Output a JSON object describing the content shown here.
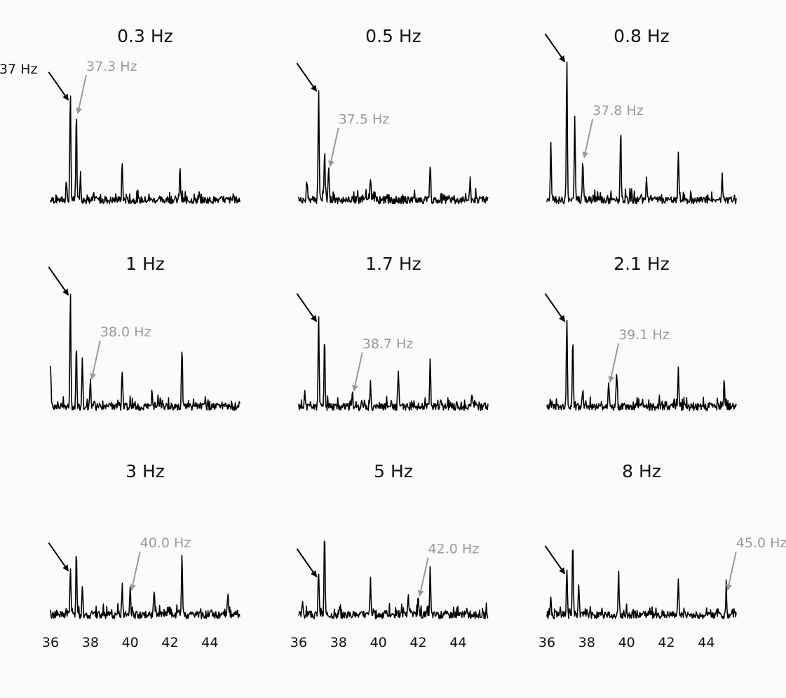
{
  "chart_data": {
    "type": "line",
    "layout": "3x3 small multiples",
    "xlim": [
      36,
      45.5
    ],
    "xticks": [
      36,
      38,
      40,
      42,
      44
    ],
    "xtick_labels": [
      "36",
      "38",
      "40",
      "42",
      "44"
    ],
    "reference_frequency": 37,
    "reference_label": "37 Hz",
    "colors": {
      "signal": "#000000",
      "reference": "#000000",
      "target": "#9a9a9a"
    },
    "common_peaks": [
      {
        "x": 37,
        "h": 0.7
      },
      {
        "x": 39.6,
        "h": 0.22
      },
      {
        "x": 42.6,
        "h": 0.22
      }
    ],
    "panels": [
      {
        "title": "0.3 Hz",
        "target_frequency": 37.3,
        "target_label": "37.3 Hz",
        "peaks": [
          {
            "x": 37.0,
            "h": 0.72
          },
          {
            "x": 37.3,
            "h": 0.6
          },
          {
            "x": 37.5,
            "h": 0.18
          },
          {
            "x": 39.6,
            "h": 0.26
          },
          {
            "x": 42.5,
            "h": 0.24
          },
          {
            "x": 36.8,
            "h": 0.12
          }
        ]
      },
      {
        "title": "0.5 Hz",
        "target_frequency": 37.5,
        "target_label": "37.5 Hz",
        "peaks": [
          {
            "x": 37.0,
            "h": 0.78
          },
          {
            "x": 37.3,
            "h": 0.34
          },
          {
            "x": 37.5,
            "h": 0.24
          },
          {
            "x": 39.6,
            "h": 0.14
          },
          {
            "x": 42.6,
            "h": 0.22
          },
          {
            "x": 44.6,
            "h": 0.14
          },
          {
            "x": 36.4,
            "h": 0.12
          }
        ]
      },
      {
        "title": "0.8 Hz",
        "target_frequency": 37.8,
        "target_label": "37.8 Hz",
        "peaks": [
          {
            "x": 37.0,
            "h": 0.98
          },
          {
            "x": 37.4,
            "h": 0.55
          },
          {
            "x": 37.8,
            "h": 0.3
          },
          {
            "x": 36.2,
            "h": 0.34
          },
          {
            "x": 39.7,
            "h": 0.45
          },
          {
            "x": 42.6,
            "h": 0.34
          },
          {
            "x": 44.8,
            "h": 0.18
          },
          {
            "x": 41.0,
            "h": 0.16
          }
        ]
      },
      {
        "title": "1 Hz",
        "target_frequency": 38.0,
        "target_label": "38.0 Hz",
        "peaks": [
          {
            "x": 37.0,
            "h": 0.8
          },
          {
            "x": 37.3,
            "h": 0.42
          },
          {
            "x": 37.6,
            "h": 0.33
          },
          {
            "x": 38.0,
            "h": 0.2
          },
          {
            "x": 36.0,
            "h": 0.3
          },
          {
            "x": 39.6,
            "h": 0.24
          },
          {
            "x": 42.6,
            "h": 0.38
          },
          {
            "x": 41.1,
            "h": 0.12
          }
        ]
      },
      {
        "title": "1.7 Hz",
        "target_frequency": 38.7,
        "target_label": "38.7 Hz",
        "peaks": [
          {
            "x": 37.0,
            "h": 0.62
          },
          {
            "x": 37.3,
            "h": 0.48
          },
          {
            "x": 38.7,
            "h": 0.12
          },
          {
            "x": 39.6,
            "h": 0.16
          },
          {
            "x": 41.0,
            "h": 0.24
          },
          {
            "x": 42.6,
            "h": 0.32
          },
          {
            "x": 36.3,
            "h": 0.12
          },
          {
            "x": 44.7,
            "h": 0.1
          }
        ]
      },
      {
        "title": "2.1 Hz",
        "target_frequency": 39.1,
        "target_label": "39.1 Hz",
        "peaks": [
          {
            "x": 37.0,
            "h": 0.62
          },
          {
            "x": 37.3,
            "h": 0.48
          },
          {
            "x": 39.1,
            "h": 0.18
          },
          {
            "x": 39.5,
            "h": 0.24
          },
          {
            "x": 42.6,
            "h": 0.26
          },
          {
            "x": 44.9,
            "h": 0.16
          },
          {
            "x": 37.8,
            "h": 0.12
          }
        ]
      },
      {
        "title": "3 Hz",
        "target_frequency": 40.0,
        "target_label": "40.0 Hz",
        "peaks": [
          {
            "x": 37.0,
            "h": 0.34
          },
          {
            "x": 37.3,
            "h": 0.44
          },
          {
            "x": 37.6,
            "h": 0.22
          },
          {
            "x": 39.6,
            "h": 0.2
          },
          {
            "x": 40.0,
            "h": 0.18
          },
          {
            "x": 41.2,
            "h": 0.18
          },
          {
            "x": 42.6,
            "h": 0.44
          },
          {
            "x": 44.9,
            "h": 0.14
          }
        ]
      },
      {
        "title": "5 Hz",
        "target_frequency": 42.0,
        "target_label": "42.0 Hz",
        "peaks": [
          {
            "x": 37.0,
            "h": 0.3
          },
          {
            "x": 37.3,
            "h": 0.58
          },
          {
            "x": 39.6,
            "h": 0.24
          },
          {
            "x": 42.0,
            "h": 0.14
          },
          {
            "x": 42.6,
            "h": 0.32
          },
          {
            "x": 41.5,
            "h": 0.12
          },
          {
            "x": 36.2,
            "h": 0.1
          }
        ]
      },
      {
        "title": "8 Hz",
        "target_frequency": 45.0,
        "target_label": "45.0 Hz",
        "peaks": [
          {
            "x": 37.0,
            "h": 0.32
          },
          {
            "x": 37.3,
            "h": 0.52
          },
          {
            "x": 37.6,
            "h": 0.22
          },
          {
            "x": 39.6,
            "h": 0.28
          },
          {
            "x": 42.6,
            "h": 0.26
          },
          {
            "x": 45.0,
            "h": 0.18
          },
          {
            "x": 36.2,
            "h": 0.14
          }
        ]
      }
    ]
  }
}
